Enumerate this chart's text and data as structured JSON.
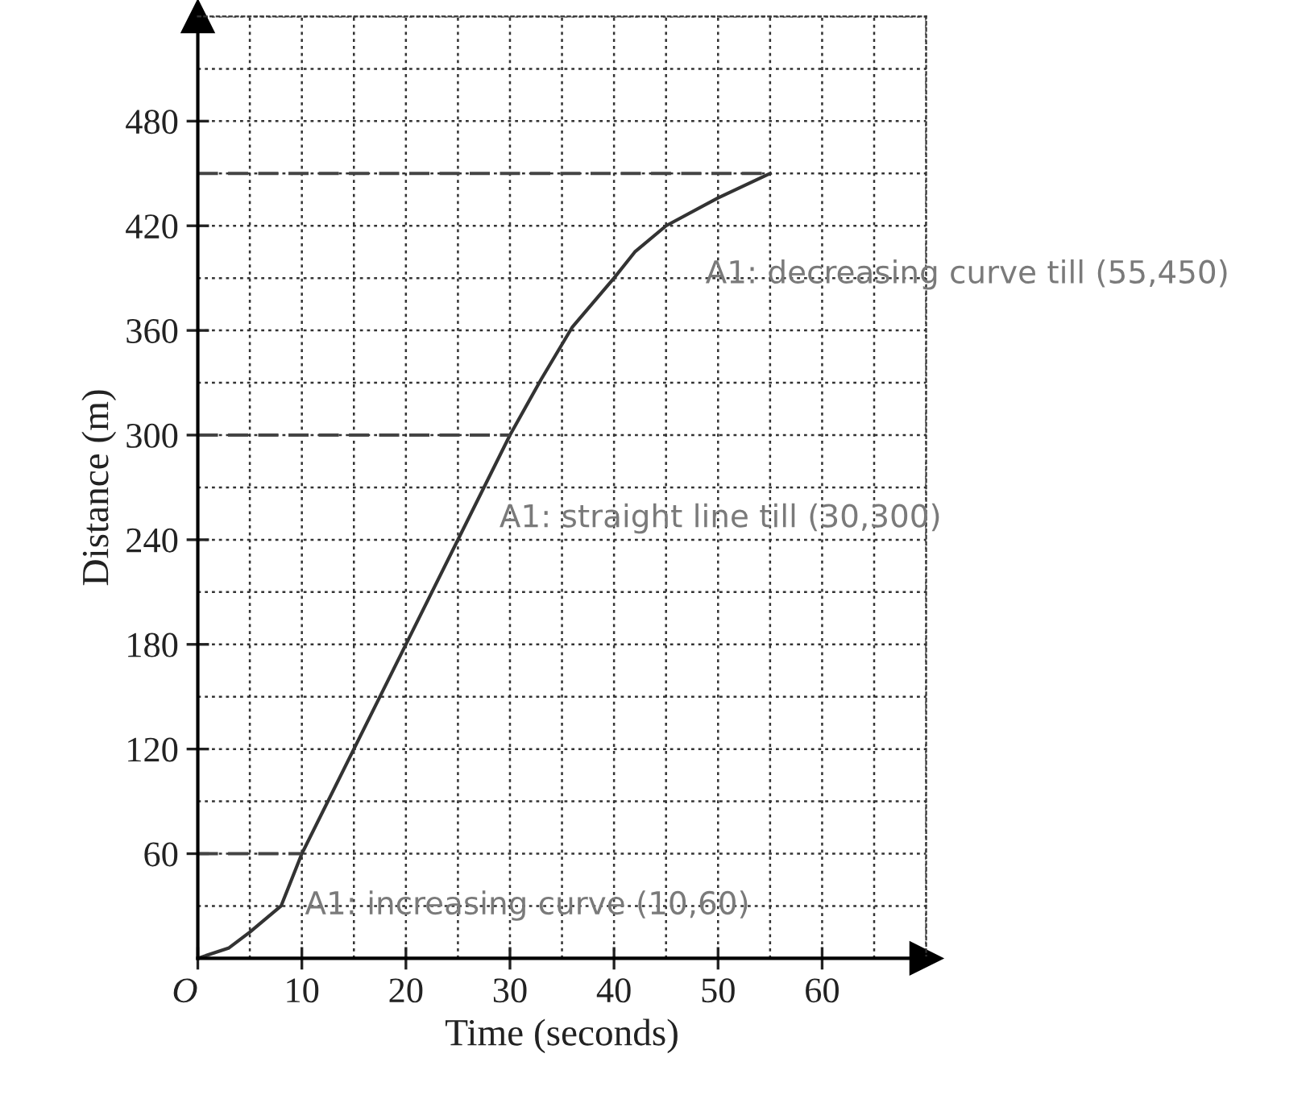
{
  "chart_data": {
    "type": "line",
    "xlabel": "Time (seconds)",
    "ylabel": "Distance (m)",
    "xlim": [
      0,
      70
    ],
    "ylim": [
      0,
      540
    ],
    "xticks": [
      {
        "value": 0,
        "label": "O"
      },
      10,
      20,
      30,
      40,
      50,
      60
    ],
    "yticks": [
      60,
      120,
      180,
      240,
      300,
      360,
      420,
      480
    ],
    "grid": true,
    "legend": false,
    "series": [
      {
        "color": "#333333",
        "line_style": "solid",
        "x": [
          0,
          3,
          5,
          8,
          10,
          30,
          33,
          36,
          40,
          42,
          45,
          50,
          55
        ],
        "values": [
          0,
          6,
          15,
          30,
          60,
          300,
          332,
          362,
          390,
          405,
          420,
          436,
          450
        ]
      },
      {
        "color": "#444444",
        "line_style": "dashed",
        "x": [
          0,
          10
        ],
        "values": [
          60,
          60
        ]
      },
      {
        "color": "#444444",
        "line_style": "dashed",
        "x": [
          0,
          30
        ],
        "values": [
          300,
          300
        ]
      },
      {
        "color": "#444444",
        "line_style": "dashed",
        "x": [
          0,
          55
        ],
        "values": [
          450,
          450
        ]
      }
    ],
    "annotations": [
      "A1: increasing curve (10,60)",
      "A1: straight line till (30,300)",
      "A1: decreasing curve till (55,450)"
    ]
  }
}
